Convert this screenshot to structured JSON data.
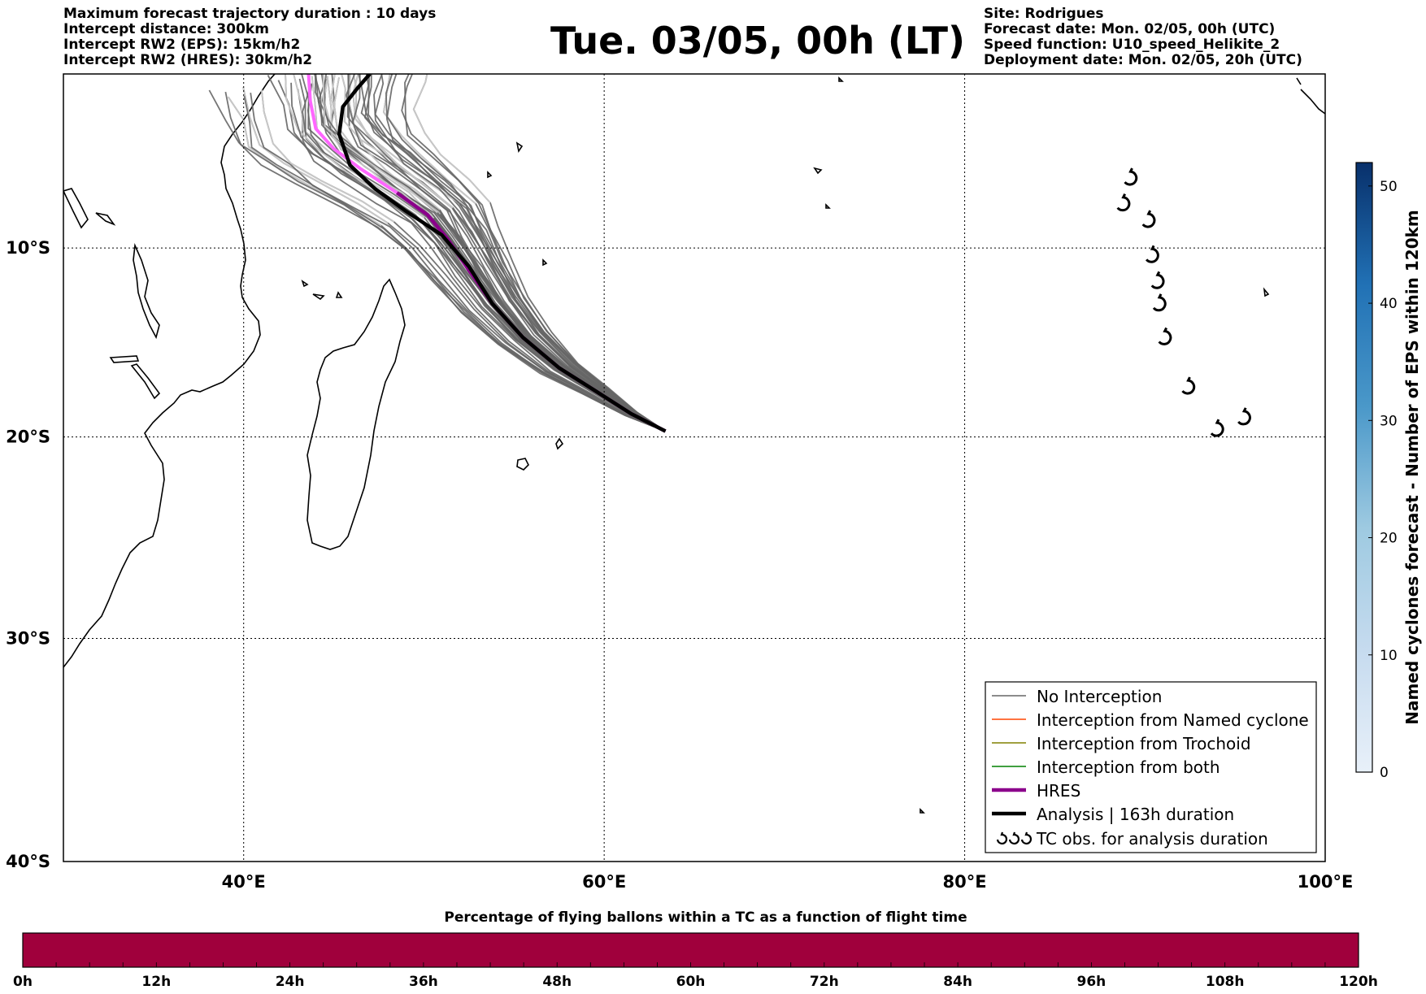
{
  "header": {
    "left_lines": [
      "Maximum forecast trajectory duration : 10 days",
      "Intercept distance: 300km",
      "Intercept RW2 (EPS):  15km/h2",
      "Intercept RW2 (HRES): 30km/h2"
    ],
    "title": "Tue. 03/05, 00h (LT)",
    "right_lines": [
      "Site: Rodrigues",
      "Forecast date: Mon. 02/05, 00h (UTC)",
      "Speed function: U10_speed_Helikite_2",
      "Deployment date: Mon. 02/05, 20h (UTC)"
    ]
  },
  "map": {
    "lon_range": [
      30,
      100
    ],
    "lat_range": [
      -40,
      -0.5
    ],
    "lat_ticks": [
      {
        "value": -10,
        "label": "10°S"
      },
      {
        "value": -20,
        "label": "20°S"
      },
      {
        "value": -30,
        "label": "30°S"
      },
      {
        "value": -40,
        "label": "40°S"
      }
    ],
    "lon_ticks": [
      {
        "value": 40,
        "label": "40°E"
      },
      {
        "value": 60,
        "label": "60°E"
      },
      {
        "value": 80,
        "label": "80°E"
      },
      {
        "value": 100,
        "label": "100°E"
      }
    ],
    "launch_site": {
      "lon": 63.4,
      "lat": -19.7
    },
    "hres_track": [
      [
        63.4,
        -19.7
      ],
      [
        61.5,
        -18.8
      ],
      [
        59.5,
        -17.6
      ],
      [
        57.5,
        -16.4
      ],
      [
        55.5,
        -14.8
      ],
      [
        53.8,
        -13.0
      ],
      [
        52.5,
        -11.2
      ],
      [
        51.3,
        -9.5
      ],
      [
        50.2,
        -8.2
      ],
      [
        48.5,
        -7.0
      ],
      [
        46.5,
        -5.7
      ],
      [
        45,
        -4.6
      ],
      [
        44,
        -3.5
      ],
      [
        43.7,
        -2.0
      ],
      [
        43.6,
        -0.5
      ]
    ],
    "analysis_track": [
      [
        63.4,
        -19.7
      ],
      [
        61.5,
        -18.8
      ],
      [
        59.5,
        -17.6
      ],
      [
        57.5,
        -16.4
      ],
      [
        55.5,
        -14.8
      ],
      [
        53.8,
        -13.0
      ],
      [
        52.5,
        -11.0
      ],
      [
        51.0,
        -9.3
      ],
      [
        49.0,
        -8.0
      ],
      [
        47.3,
        -6.8
      ],
      [
        45.9,
        -5.5
      ],
      [
        45.3,
        -3.8
      ],
      [
        45.5,
        -2.3
      ],
      [
        46.3,
        -1.3
      ],
      [
        47,
        -0.5
      ]
    ],
    "tc_obs": [
      [
        89.2,
        -6.2
      ],
      [
        88.8,
        -7.6
      ],
      [
        90.2,
        -8.5
      ],
      [
        90.4,
        -10.4
      ],
      [
        90.7,
        -11.8
      ],
      [
        90.8,
        -13.0
      ],
      [
        91.1,
        -14.8
      ],
      [
        92.4,
        -17.4
      ],
      [
        94,
        -19.6
      ],
      [
        95.5,
        -19.0
      ]
    ],
    "hres_color": "#8b008b",
    "hres_fade_color": "#ff66ff",
    "analysis_color": "#000000",
    "no_interception_color": "#666666",
    "named_cyclone_color": "#ff4500",
    "trochoid_color": "#808000",
    "both_color": "#008000"
  },
  "legend": {
    "items": [
      {
        "label": "No Interception"
      },
      {
        "label": "Interception from Named cyclone"
      },
      {
        "label": "Interception from Trochoid"
      },
      {
        "label": "Interception from both"
      },
      {
        "label": "HRES"
      },
      {
        "label": "Analysis | 163h duration"
      },
      {
        "label": "TC obs. for analysis duration"
      }
    ]
  },
  "colorbar_right": {
    "title": "Named cyclones forecast - Number of EPS within 120km",
    "range": [
      0,
      52
    ],
    "ticks": [
      "0",
      "10",
      "20",
      "30",
      "40",
      "50"
    ]
  },
  "colorbar_bottom": {
    "title": "Percentage of flying ballons within a TC as a function of flight time",
    "fill_color": "#a0003c",
    "ticks": [
      "0h",
      "12h",
      "24h",
      "36h",
      "48h",
      "60h",
      "72h",
      "84h",
      "96h",
      "108h",
      "120h"
    ]
  }
}
